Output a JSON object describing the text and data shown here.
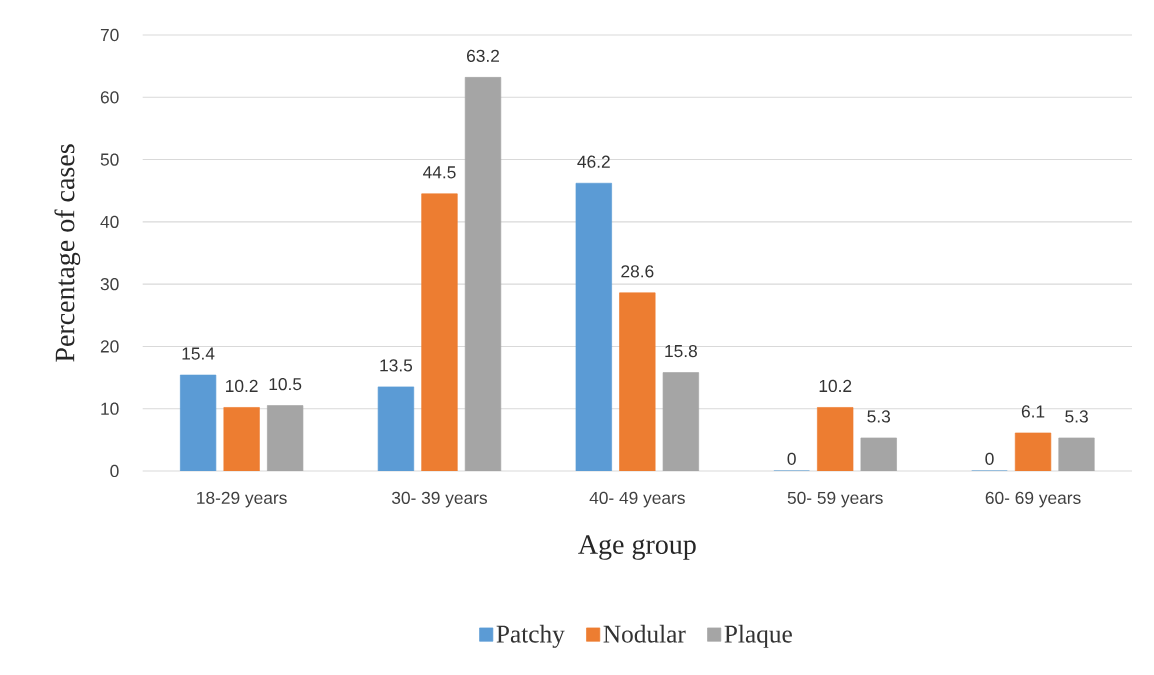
{
  "chart_data": {
    "type": "bar",
    "xlabel": "Age group",
    "ylabel": "Percentage of cases",
    "categories": [
      "18-29 years",
      "30- 39 years",
      "40- 49 years",
      "50- 59 years",
      "60- 69 years"
    ],
    "series": [
      {
        "name": "Patchy",
        "color": "#5b9bd5",
        "values": [
          15.4,
          13.5,
          46.2,
          0,
          0
        ]
      },
      {
        "name": "Nodular",
        "color": "#ed7d31",
        "values": [
          10.2,
          44.5,
          28.6,
          10.2,
          6.1
        ]
      },
      {
        "name": "Plaque",
        "color": "#a5a5a5",
        "values": [
          10.5,
          63.2,
          15.8,
          5.3,
          5.3
        ]
      }
    ],
    "ylim": [
      0,
      70
    ],
    "yticks": [
      0,
      10,
      20,
      30,
      40,
      50,
      60,
      70
    ],
    "grid": "y",
    "legend": "bottom",
    "data_labels": true
  }
}
